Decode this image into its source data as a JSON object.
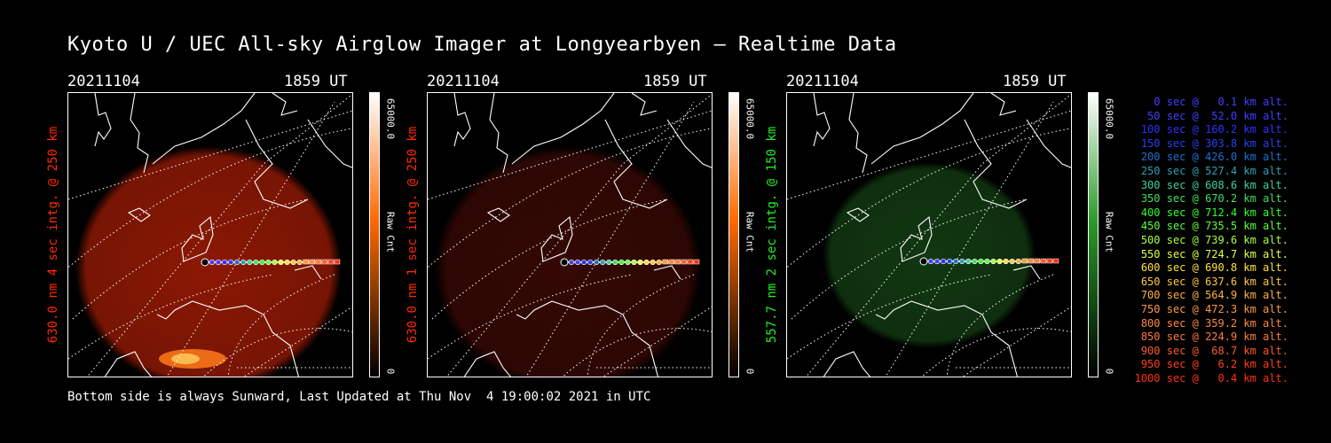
{
  "title": "Kyoto U / UEC All-sky Airglow Imager at Longyearbyen – Realtime Data",
  "panels": [
    {
      "date": "20211104",
      "time": "1859 UT",
      "ylabel": "630.0 nm 4 sec intg. @ 250 km",
      "label_color": "#ff2a00",
      "cbar_max": "65000.0",
      "cbar_min": "0",
      "cbar_unit": "Raw Cnt",
      "cbar_top": "#ffffff",
      "cbar_mid": "#ff6a00",
      "cbar_bottom": "#000000",
      "glow": "#b31f06",
      "glow_alpha": 0.78
    },
    {
      "date": "20211104",
      "time": "1859 UT",
      "ylabel": "630.0 nm 1 sec intg. @ 250 km",
      "label_color": "#ff2a00",
      "cbar_max": "65000.0",
      "cbar_min": "0",
      "cbar_unit": "Raw Cnt",
      "cbar_top": "#ffffff",
      "cbar_mid": "#ff6a00",
      "cbar_bottom": "#000000",
      "glow": "#3a0904",
      "glow_alpha": 0.9
    },
    {
      "date": "20211104",
      "time": "1859 UT",
      "ylabel": "557.7 nm 2 sec intg. @ 150 km",
      "label_color": "#22ee22",
      "cbar_max": "65000.0",
      "cbar_min": "0",
      "cbar_unit": "Raw Cnt",
      "cbar_top": "#ffffff",
      "cbar_mid": "#2a9b2a",
      "cbar_bottom": "#000000",
      "glow": "#123a12",
      "glow_alpha": 0.95
    }
  ],
  "legend": [
    {
      "text": "   0 sec @   0.1 km alt.",
      "color": "#4040ff"
    },
    {
      "text": "  50 sec @  52.0 km alt.",
      "color": "#4040ff"
    },
    {
      "text": " 100 sec @ 160.2 km alt.",
      "color": "#3030ff"
    },
    {
      "text": " 150 sec @ 303.8 km alt.",
      "color": "#2a40f0"
    },
    {
      "text": " 200 sec @ 426.0 km alt.",
      "color": "#2070d0"
    },
    {
      "text": " 250 sec @ 527.4 km alt.",
      "color": "#30a0b0"
    },
    {
      "text": " 300 sec @ 608.6 km alt.",
      "color": "#40d0a0"
    },
    {
      "text": " 350 sec @ 670.2 km alt.",
      "color": "#40e060"
    },
    {
      "text": " 400 sec @ 712.4 km alt.",
      "color": "#30ff30"
    },
    {
      "text": " 450 sec @ 735.5 km alt.",
      "color": "#60ff40"
    },
    {
      "text": " 500 sec @ 739.6 km alt.",
      "color": "#a8ff40"
    },
    {
      "text": " 550 sec @ 724.7 km alt.",
      "color": "#e8ff40"
    },
    {
      "text": " 600 sec @ 690.8 km alt.",
      "color": "#ffe040"
    },
    {
      "text": " 650 sec @ 637.6 km alt.",
      "color": "#ffc840"
    },
    {
      "text": " 700 sec @ 564.9 km alt.",
      "color": "#ffb040"
    },
    {
      "text": " 750 sec @ 472.3 km alt.",
      "color": "#ff9a40"
    },
    {
      "text": " 800 sec @ 359.2 km alt.",
      "color": "#ff8840"
    },
    {
      "text": " 850 sec @ 224.9 km alt.",
      "color": "#ff7a40"
    },
    {
      "text": " 900 sec @  68.7 km alt.",
      "color": "#ff5a30"
    },
    {
      "text": " 950 sec @   6.2 km alt.",
      "color": "#ff4020"
    },
    {
      "text": "1000 sec @   0.4 km alt.",
      "color": "#ff3010"
    }
  ],
  "footer": "Bottom side is always Sunward, Last Updated at Thu Nov  4 19:00:02 2021 in UTC"
}
